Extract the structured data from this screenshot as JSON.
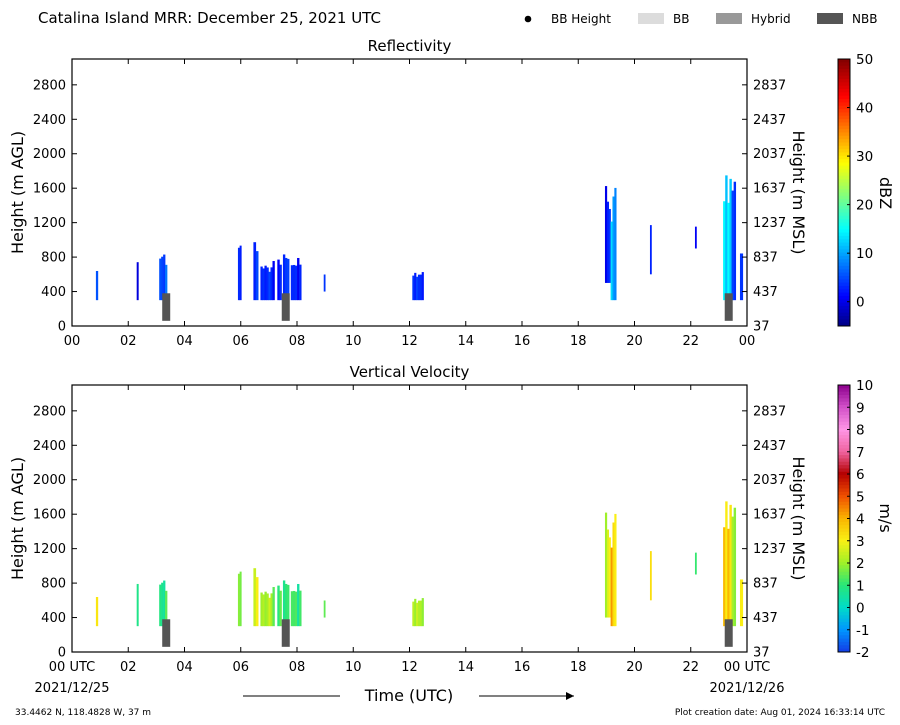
{
  "header": {
    "title": "Catalina Island MRR:  December 25, 2021 UTC",
    "legend": [
      {
        "label": "BB Height",
        "kind": "dot",
        "color": "#000000"
      },
      {
        "label": "BB",
        "kind": "box",
        "color": "#dcdcdc"
      },
      {
        "label": "Hybrid",
        "kind": "box",
        "color": "#999999"
      },
      {
        "label": "NBB",
        "kind": "box",
        "color": "#555555"
      }
    ]
  },
  "footer": {
    "location": "33.4462 N, 118.4828 W, 37 m",
    "creation": "Plot creation date: Aug 01, 2024 16:33:14 UTC",
    "start_date": "2021/12/25",
    "end_date": "2021/12/26"
  },
  "chart_data": [
    {
      "type": "heatmap",
      "title": "Reflectivity",
      "ylabel": "Height (m AGL)",
      "y2label": "Height (m MSL)",
      "xlim": [
        0,
        24
      ],
      "ylim": [
        0,
        3100
      ],
      "xticks": [
        "00",
        "02",
        "04",
        "06",
        "08",
        "10",
        "12",
        "14",
        "16",
        "18",
        "20",
        "22",
        "00"
      ],
      "yticks": [
        0,
        400,
        800,
        1200,
        1600,
        2000,
        2400,
        2800
      ],
      "y2ticks": [
        "37",
        "437",
        "837",
        "1237",
        "1637",
        "2037",
        "2437",
        "2837"
      ],
      "colorbar": {
        "label": "dBZ",
        "min": -5,
        "max": 50,
        "ticks": [
          0,
          10,
          20,
          30,
          40,
          50
        ]
      },
      "bright_band": [
        {
          "t": 3.35,
          "type": "NBB"
        },
        {
          "t": 7.6,
          "type": "NBB"
        },
        {
          "t": 23.35,
          "type": "NBB"
        }
      ],
      "echoes": [
        {
          "t0": 0.85,
          "t1": 0.92,
          "h0": 300,
          "h1": 800,
          "v": 3
        },
        {
          "t0": 2.3,
          "t1": 2.36,
          "h0": 300,
          "h1": 750,
          "v": 2
        },
        {
          "t0": 3.1,
          "t1": 3.38,
          "h0": 300,
          "h1": 900,
          "v": 5
        },
        {
          "t0": 5.9,
          "t1": 6.02,
          "h0": 300,
          "h1": 1000,
          "v": 4
        },
        {
          "t0": 6.45,
          "t1": 6.62,
          "h0": 300,
          "h1": 1100,
          "v": 3
        },
        {
          "t0": 6.7,
          "t1": 7.2,
          "h0": 300,
          "h1": 800,
          "v": 2
        },
        {
          "t0": 7.3,
          "t1": 7.45,
          "h0": 300,
          "h1": 800,
          "v": 3
        },
        {
          "t0": 7.5,
          "t1": 7.72,
          "h0": 300,
          "h1": 900,
          "v": 4
        },
        {
          "t0": 7.78,
          "t1": 8.15,
          "h0": 300,
          "h1": 800,
          "v": 3
        },
        {
          "t0": 8.95,
          "t1": 9.0,
          "h0": 400,
          "h1": 700,
          "v": 1
        },
        {
          "t0": 12.1,
          "t1": 12.5,
          "h0": 300,
          "h1": 700,
          "v": 2
        },
        {
          "t0": 18.95,
          "t1": 19.15,
          "h0": 500,
          "h1": 1700,
          "v": 2
        },
        {
          "t0": 19.15,
          "t1": 19.35,
          "h0": 300,
          "h1": 1700,
          "v": 10
        },
        {
          "t0": 20.55,
          "t1": 20.6,
          "h0": 600,
          "h1": 1400,
          "v": 1
        },
        {
          "t0": 22.15,
          "t1": 22.2,
          "h0": 900,
          "h1": 1200,
          "v": 1
        },
        {
          "t0": 23.15,
          "t1": 23.45,
          "h0": 300,
          "h1": 2000,
          "v": 12
        },
        {
          "t0": 23.45,
          "t1": 23.6,
          "h0": 300,
          "h1": 1800,
          "v": 5
        },
        {
          "t0": 23.75,
          "t1": 23.85,
          "h0": 300,
          "h1": 1000,
          "v": 3
        }
      ]
    },
    {
      "type": "heatmap",
      "title": "Vertical Velocity",
      "ylabel": "Height (m AGL)",
      "y2label": "Height (m MSL)",
      "xlabel": "Time (UTC)",
      "xlim": [
        0,
        24
      ],
      "ylim": [
        0,
        3100
      ],
      "xticks": [
        "00 UTC",
        "02",
        "04",
        "06",
        "08",
        "10",
        "12",
        "14",
        "16",
        "18",
        "20",
        "22",
        "00 UTC"
      ],
      "yticks": [
        0,
        400,
        800,
        1200,
        1600,
        2000,
        2400,
        2800
      ],
      "y2ticks": [
        "37",
        "437",
        "837",
        "1237",
        "1637",
        "2037",
        "2437",
        "2837"
      ],
      "colorbar": {
        "label": "m/s",
        "min": -2,
        "max": 10,
        "ticks": [
          -2,
          -1,
          0,
          1,
          2,
          3,
          4,
          5,
          6,
          7,
          8,
          9,
          10
        ]
      },
      "bright_band": [
        {
          "t": 3.35,
          "type": "NBB"
        },
        {
          "t": 7.6,
          "type": "NBB"
        },
        {
          "t": 23.35,
          "type": "NBB"
        }
      ],
      "echoes": [
        {
          "t0": 0.85,
          "t1": 0.92,
          "h0": 300,
          "h1": 800,
          "v": 2.5
        },
        {
          "t0": 2.3,
          "t1": 2.36,
          "h0": 300,
          "h1": 800,
          "v": 1.5
        },
        {
          "t0": 3.1,
          "t1": 3.38,
          "h0": 300,
          "h1": 900,
          "v": 0.8
        },
        {
          "t0": 5.9,
          "t1": 6.02,
          "h0": 300,
          "h1": 1000,
          "v": 2
        },
        {
          "t0": 6.45,
          "t1": 6.62,
          "h0": 300,
          "h1": 1100,
          "v": 2.5
        },
        {
          "t0": 6.7,
          "t1": 7.2,
          "h0": 300,
          "h1": 800,
          "v": 1.8
        },
        {
          "t0": 7.3,
          "t1": 7.45,
          "h0": 300,
          "h1": 800,
          "v": 1.5
        },
        {
          "t0": 7.5,
          "t1": 7.72,
          "h0": 300,
          "h1": 900,
          "v": 1
        },
        {
          "t0": 7.78,
          "t1": 8.15,
          "h0": 300,
          "h1": 800,
          "v": 1.2
        },
        {
          "t0": 8.95,
          "t1": 9.0,
          "h0": 400,
          "h1": 700,
          "v": 0.7
        },
        {
          "t0": 12.1,
          "t1": 12.5,
          "h0": 300,
          "h1": 700,
          "v": 1.8
        },
        {
          "t0": 18.95,
          "t1": 19.15,
          "h0": 400,
          "h1": 1700,
          "v": 2.5
        },
        {
          "t0": 19.15,
          "t1": 19.35,
          "h0": 300,
          "h1": 1700,
          "v": 3.5
        },
        {
          "t0": 20.55,
          "t1": 20.6,
          "h0": 600,
          "h1": 1400,
          "v": 2.8
        },
        {
          "t0": 22.15,
          "t1": 22.2,
          "h0": 900,
          "h1": 1200,
          "v": 1.2
        },
        {
          "t0": 23.15,
          "t1": 23.45,
          "h0": 300,
          "h1": 2000,
          "v": 3.2
        },
        {
          "t0": 23.45,
          "t1": 23.6,
          "h0": 300,
          "h1": 1800,
          "v": 2.2
        },
        {
          "t0": 23.75,
          "t1": 23.85,
          "h0": 300,
          "h1": 1000,
          "v": 2.8
        }
      ]
    }
  ]
}
